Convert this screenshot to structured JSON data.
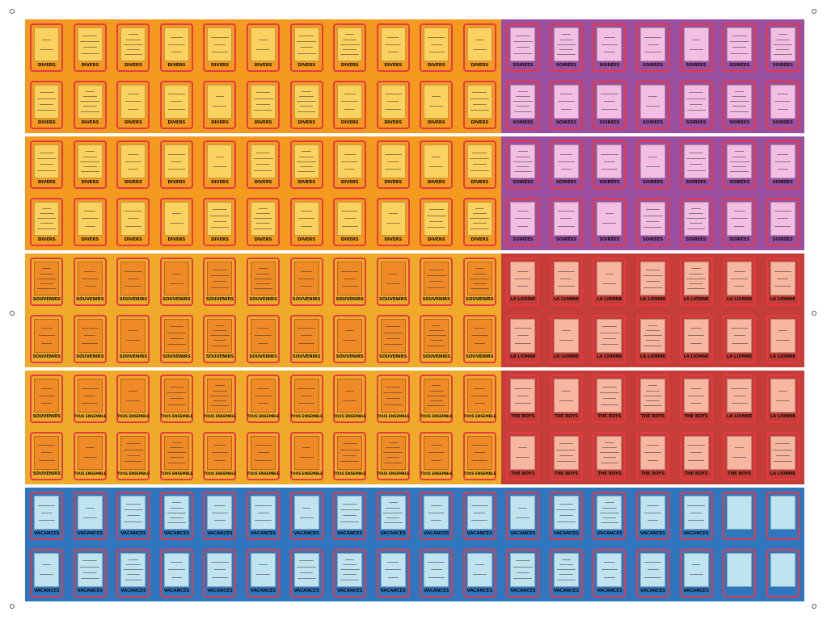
{
  "colors": {
    "background": "#ffffff",
    "card_border": "#e63946",
    "divers_bg": "#f39a1f",
    "divers_face": "#fbd160",
    "soirees_bg": "#9b4fa0",
    "soirees_face": "#f2bfe2",
    "souvenirs_bg": "#efaa2a",
    "souvenirs_face": "#f08a27",
    "lionne_bg": "#c53d37",
    "lionne_face": "#f6b6a0",
    "vacances_bg": "#3076bf",
    "vacances_face": "#bfe4ef"
  },
  "bands": [
    {
      "segments": [
        {
          "color": "#f39a1f",
          "cols": 11
        },
        {
          "color": "#9b4fa0",
          "cols": 7
        }
      ],
      "rows": [
        [
          "DIVERS",
          "DIVERS",
          "DIVERS",
          "DIVERS",
          "DIVERS",
          "DIVERS",
          "DIVERS",
          "DIVERS",
          "DIVERS",
          "DIVERS",
          "DIVERS",
          "SOIRÉES",
          "SOIRÉES",
          "SOIRÉES",
          "SOIRÉES",
          "SOIRÉES",
          "SOIRÉES",
          "SOIRÉES"
        ],
        [
          "DIVERS",
          "DIVERS",
          "DIVERS",
          "DIVERS",
          "DIVERS",
          "DIVERS",
          "DIVERS",
          "DIVERS",
          "DIVERS",
          "DIVERS",
          "DIVERS",
          "SOIRÉES",
          "SOIRÉES",
          "SOIRÉES",
          "SOIRÉES",
          "SOIRÉES",
          "SOIRÉES",
          "SOIRÉES"
        ]
      ]
    },
    {
      "segments": [
        {
          "color": "#f39a1f",
          "cols": 11
        },
        {
          "color": "#9b4fa0",
          "cols": 7
        }
      ],
      "rows": [
        [
          "DIVERS",
          "DIVERS",
          "DIVERS",
          "DIVERS",
          "DIVERS",
          "DIVERS",
          "DIVERS",
          "DIVERS",
          "DIVERS",
          "DIVERS",
          "DIVERS",
          "SOIRÉES",
          "SOIRÉES",
          "SOIRÉES",
          "SOIRÉES",
          "SOIRÉES",
          "SOIRÉES",
          "SOIRÉES"
        ],
        [
          "DIVERS",
          "DIVERS",
          "DIVERS",
          "DIVERS",
          "DIVERS",
          "DIVERS",
          "DIVERS",
          "DIVERS",
          "DIVERS",
          "DIVERS",
          "DIVERS",
          "SOIRÉES",
          "SOIRÉES",
          "SOIRÉES",
          "SOIRÉES",
          "SOIRÉES",
          "SOIRÉES",
          "SOIRÉES"
        ]
      ]
    },
    {
      "segments": [
        {
          "color": "#efaa2a",
          "cols": 11
        },
        {
          "color": "#c53d37",
          "cols": 7
        }
      ],
      "rows": [
        [
          "SOUVENIRS",
          "SOUVENIRS",
          "SOUVENIRS",
          "SOUVENIRS",
          "SOUVENIRS",
          "SOUVENIRS",
          "SOUVENIRS",
          "SOUVENIRS",
          "SOUVENIRS",
          "SOUVENIRS",
          "SOUVENIRS",
          "LA LIONNE",
          "LA LIONNE",
          "LA LIONNE",
          "LA LIONNE",
          "LA LIONNE",
          "LA LIONNE",
          "LA LIONNE"
        ],
        [
          "SOUVENIRS",
          "SOUVENIRS",
          "SOUVENIRS",
          "SOUVENIRS",
          "SOUVENIRS",
          "SOUVENIRS",
          "SOUVENIRS",
          "SOUVENIRS",
          "SOUVENIRS",
          "SOUVENIRS",
          "SOUVENIRS",
          "LA LIONNE",
          "LA LIONNE",
          "LA LIONNE",
          "LA LIONNE",
          "LA LIONNE",
          "LA LIONNE",
          "LA LIONNE"
        ]
      ]
    },
    {
      "segments": [
        {
          "color": "#efaa2a",
          "cols": 11
        },
        {
          "color": "#c53d37",
          "cols": 7
        }
      ],
      "rows": [
        [
          "SOUVENIRS",
          "TOUS ENSEMBLE",
          "TOUS ENSEMBLE",
          "TOUS ENSEMBLE",
          "TOUS ENSEMBLE",
          "TOUS ENSEMBLE",
          "TOUS ENSEMBLE",
          "TOUS ENSEMBLE",
          "TOUS ENSEMBLE",
          "TOUS ENSEMBLE",
          "TOUS ENSEMBLE",
          "THE BOYS",
          "THE BOYS",
          "THE BOYS",
          "THE BOYS",
          "THE BOYS",
          "LA LIONNE",
          "LA LIONNE"
        ],
        [
          "SOUVENIRS",
          "TOUS ENSEMBLE",
          "TOUS ENSEMBLE",
          "TOUS ENSEMBLE",
          "TOUS ENSEMBLE",
          "TOUS ENSEMBLE",
          "TOUS ENSEMBLE",
          "TOUS ENSEMBLE",
          "TOUS ENSEMBLE",
          "TOUS ENSEMBLE",
          "TOUS ENSEMBLE",
          "THE BOYS",
          "THE BOYS",
          "THE BOYS",
          "THE BOYS",
          "THE BOYS",
          "THE BOYS",
          "LA LIONNE"
        ]
      ]
    },
    {
      "segments": [
        {
          "color": "#3076bf",
          "cols": 18
        }
      ],
      "rows": [
        [
          "VACANCES",
          "VACANCES",
          "VACANCES",
          "VACANCES",
          "VACANCES",
          "VACANCES",
          "VACANCES",
          "VACANCES",
          "VACANCES",
          "VACANCES",
          "VACANCES",
          "VACANCES",
          "VACANCES",
          "VACANCES",
          "VACANCES",
          "VACANCES",
          "",
          ""
        ],
        [
          "VACANCES",
          "VACANCES",
          "VACANCES",
          "VACANCES",
          "VACANCES",
          "VACANCES",
          "VACANCES",
          "VACANCES",
          "VACANCES",
          "VACANCES",
          "VACANCES",
          "VACANCES",
          "VACANCES",
          "VACANCES",
          "VACANCES",
          "VACANCES",
          "",
          ""
        ]
      ]
    }
  ]
}
